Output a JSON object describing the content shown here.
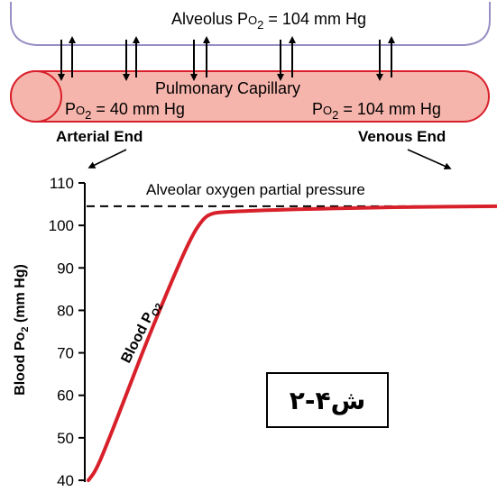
{
  "alveolus": {
    "label_prefix": "Alveolus P",
    "label_sub": "O",
    "label_sub2": "2",
    "label_suffix": " = 104 mm Hg"
  },
  "capillary": {
    "title": "Pulmonary Capillary",
    "left_po2": {
      "prefix": "P",
      "sub": "O",
      "sub2": "2",
      "suffix": " = 40 mm Hg"
    },
    "right_po2": {
      "prefix": "P",
      "sub": "O",
      "sub2": "2",
      "suffix": " = 104 mm Hg"
    },
    "fill_color": "#f6b5ac",
    "stroke_color": "#d8202a"
  },
  "ends": {
    "arterial": "Arterial End",
    "venous": "Venous End"
  },
  "figure_label": "ش۴-۲",
  "chart_data": {
    "type": "line",
    "title": "",
    "xlabel": "",
    "ylabel_prefix": "Blood Po",
    "ylabel_sub": "2",
    "ylabel_suffix": " (mm Hg)",
    "yticks": [
      "40",
      "50",
      "60",
      "70",
      "80",
      "90",
      "100",
      "110"
    ],
    "ylim": [
      40,
      110
    ],
    "xlim": [
      0,
      1
    ],
    "reference_line": {
      "label": "Alveolar oxygen partial pressure",
      "y": 104.5
    },
    "series": [
      {
        "name": "Blood Po2",
        "label_prefix": "Blood P",
        "label_sub": "O2",
        "color": "#d8202a",
        "x": [
          0.0,
          0.02,
          0.06,
          0.1,
          0.14,
          0.2,
          0.25,
          0.28,
          0.3,
          0.33,
          0.5,
          0.75,
          1.0
        ],
        "y": [
          40,
          42.5,
          52,
          62,
          72,
          86,
          97,
          101.5,
          102.8,
          103.2,
          103.8,
          104.3,
          104.5
        ]
      }
    ]
  }
}
